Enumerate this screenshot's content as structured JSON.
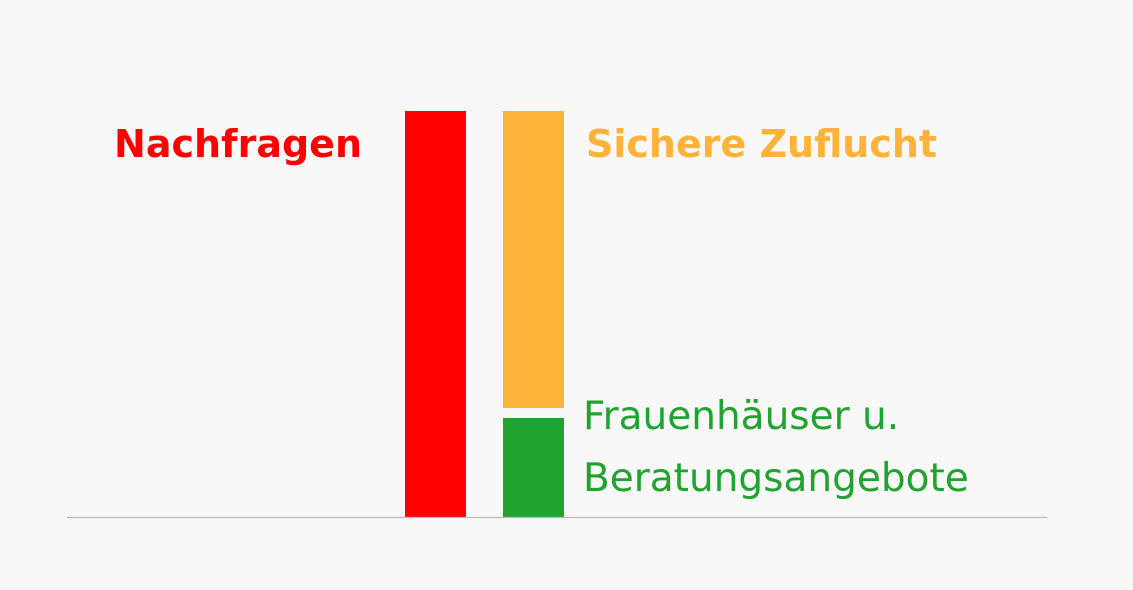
{
  "chart_data": {
    "type": "bar",
    "stacked": true,
    "title": "",
    "xlabel": "",
    "ylabel": "",
    "ylim": [
      0,
      100
    ],
    "grid": false,
    "bars": [
      {
        "segments": [
          {
            "label": "Nachfragen",
            "value": 100,
            "color": "#ff0000"
          }
        ]
      },
      {
        "segments": [
          {
            "label_lines": [
              "Frauenhäuser u.",
              "Beratungsangebote"
            ],
            "value": 25,
            "color": "#21a330"
          },
          {
            "label": "Sichere Zuflucht",
            "value": 75,
            "color": "#fdb33a"
          }
        ]
      }
    ],
    "colors": {
      "background": "#f8f8f8",
      "baseline": "#bbbbbb"
    }
  }
}
